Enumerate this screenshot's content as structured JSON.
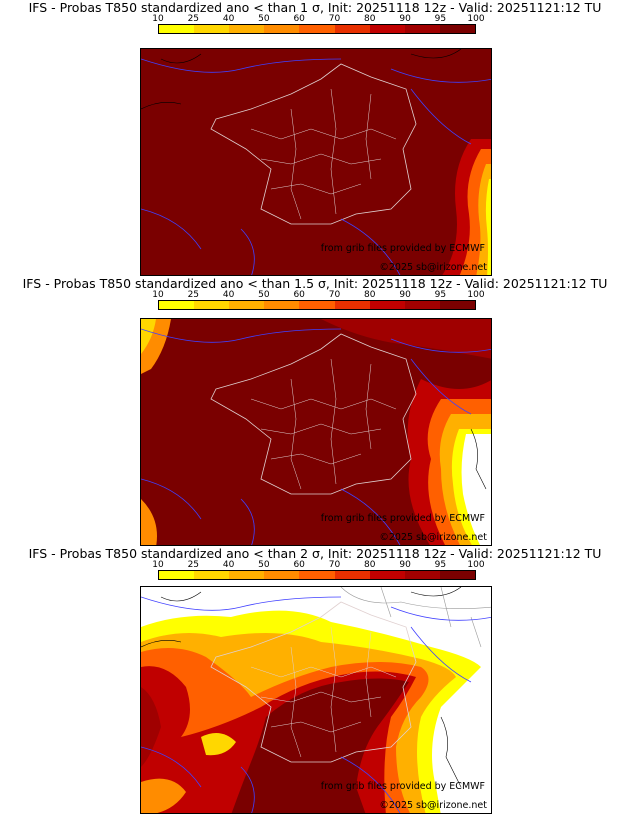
{
  "legend": {
    "ticks": [
      "10",
      "25",
      "40",
      "50",
      "60",
      "70",
      "80",
      "90",
      "95",
      "100"
    ],
    "colors": [
      "#ffff00",
      "#ffd700",
      "#ffb000",
      "#ff8c00",
      "#ff6000",
      "#e83000",
      "#c00000",
      "#a00000",
      "#7a0000"
    ]
  },
  "panels": [
    {
      "title": "IFS - Probas T850  standardized ano < than 1 σ, Init: 20251118 12z - Valid: 20251121:12 TU"
    },
    {
      "title": "IFS - Probas T850  standardized ano < than 1.5 σ, Init: 20251118 12z - Valid: 20251121:12 TU"
    },
    {
      "title": "IFS - Probas T850  standardized ano < than 2 σ, Init: 20251118 12z - Valid: 20251121:12 TU"
    }
  ],
  "credits": {
    "source": "from grib files provided by ECMWF",
    "copyright": "©2025 sb@irizone.net"
  },
  "colors": {
    "dark_red": "#7a0000",
    "border_white": "#e0d0d0",
    "river_blue": "#4040ff"
  }
}
